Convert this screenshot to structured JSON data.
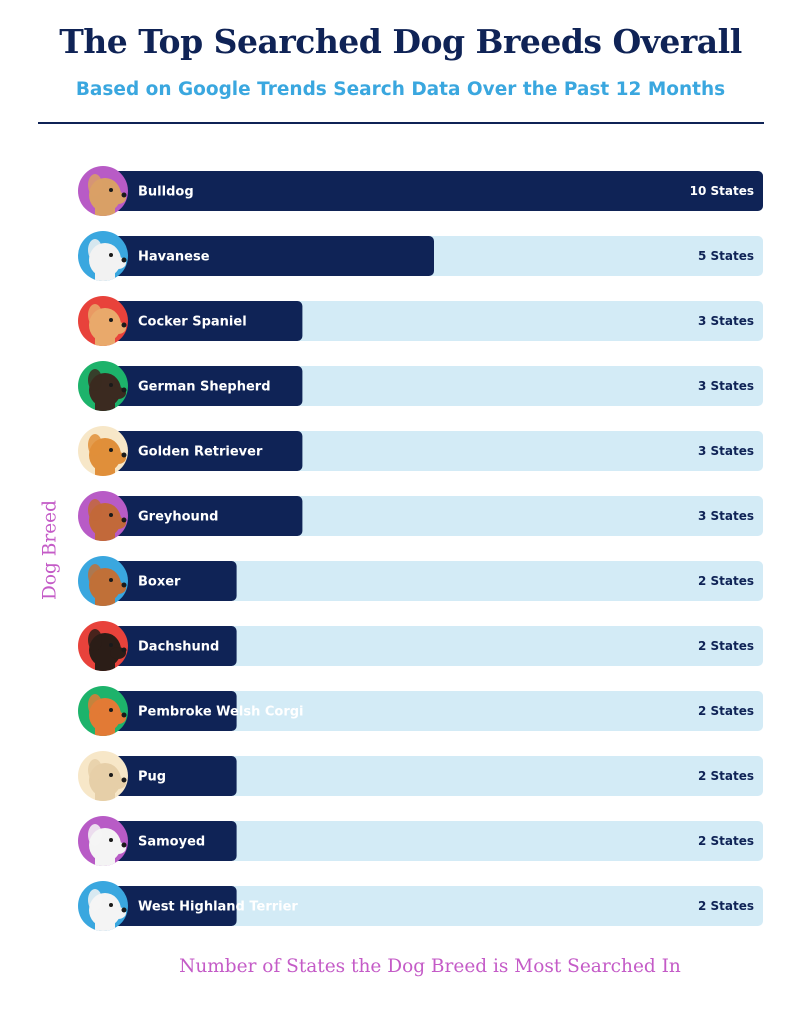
{
  "title": "The Top Searched Dog Breeds Overall",
  "subtitle": "Based on Google Trends Search Data Over the Past 12 Months",
  "colors": {
    "title": "#0f2356",
    "subtitle": "#3aa7df",
    "bar_fill": "#0f2356",
    "bar_track": "#d3ebf6",
    "axis_label": "#c45bc7",
    "avatar_purple": "#b85bc6",
    "avatar_blue": "#3aa7df",
    "avatar_red": "#e8423b",
    "avatar_green": "#1db36b",
    "avatar_cream": "#f7e7c8"
  },
  "chart_data": {
    "type": "bar",
    "orientation": "horizontal",
    "ylabel": "Dog Breed",
    "xlabel": "Number of States the Dog Breed is Most Searched In",
    "xlim": [
      0,
      10
    ],
    "categories": [
      "Bulldog",
      "Havanese",
      "Cocker Spaniel",
      "German Shepherd",
      "Golden Retriever",
      "Greyhound",
      "Boxer",
      "Dachshund",
      "Pembroke Welsh Corgi",
      "Pug",
      "Samoyed",
      "West Highland Terrier"
    ],
    "values": [
      10,
      5,
      3,
      3,
      3,
      3,
      2,
      2,
      2,
      2,
      2,
      2
    ],
    "value_labels": [
      "10 States",
      "5 States",
      "3 States",
      "3 States",
      "3 States",
      "3 States",
      "2 States",
      "2 States",
      "2 States",
      "2 States",
      "2 States",
      "2 States"
    ],
    "avatars": [
      {
        "icon": "bulldog-icon",
        "bg": "#b85bc6"
      },
      {
        "icon": "havanese-icon",
        "bg": "#3aa7df"
      },
      {
        "icon": "cocker-spaniel-icon",
        "bg": "#e8423b"
      },
      {
        "icon": "german-shepherd-icon",
        "bg": "#1db36b"
      },
      {
        "icon": "golden-retriever-icon",
        "bg": "#f7e7c8"
      },
      {
        "icon": "greyhound-icon",
        "bg": "#b85bc6"
      },
      {
        "icon": "boxer-icon",
        "bg": "#3aa7df"
      },
      {
        "icon": "dachshund-icon",
        "bg": "#e8423b"
      },
      {
        "icon": "corgi-icon",
        "bg": "#1db36b"
      },
      {
        "icon": "pug-icon",
        "bg": "#f7e7c8"
      },
      {
        "icon": "samoyed-icon",
        "bg": "#b85bc6"
      },
      {
        "icon": "westie-icon",
        "bg": "#3aa7df"
      }
    ],
    "dog_colors": [
      "#d9a066",
      "#f2f2f2",
      "#e9a96b",
      "#3b2a20",
      "#e08f3a",
      "#c2693a",
      "#c07038",
      "#2b1d17",
      "#e27a35",
      "#e6cfa8",
      "#f4f4f4",
      "#f4f4f4"
    ]
  }
}
